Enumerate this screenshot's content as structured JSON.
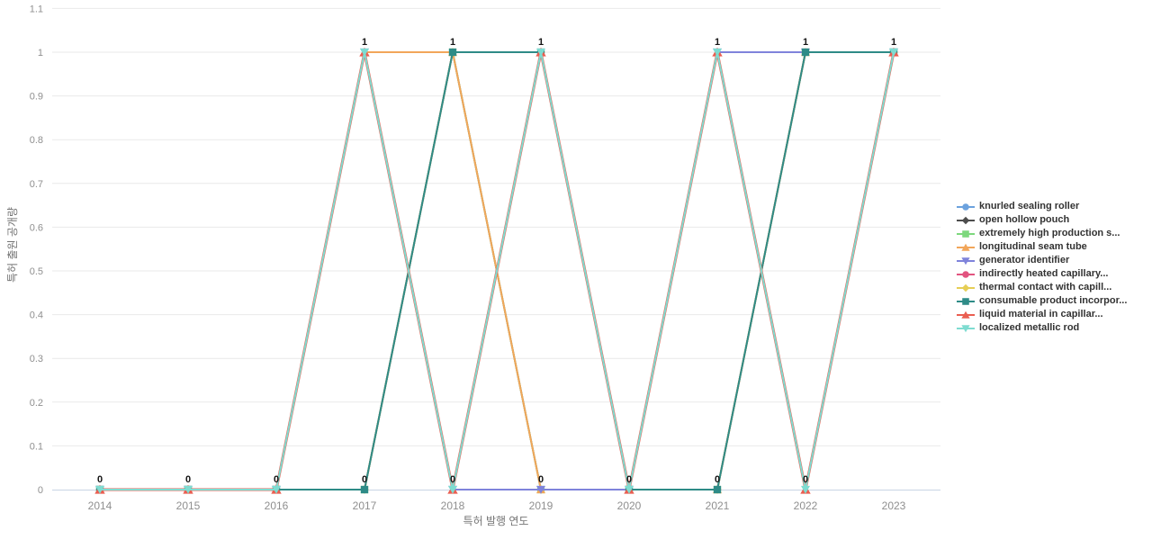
{
  "chart_data": {
    "type": "line",
    "title": "",
    "xlabel": "특허 발행 연도",
    "ylabel": "특허 출원 공개량",
    "x": [
      "2014",
      "2015",
      "2016",
      "2017",
      "2018",
      "2019",
      "2020",
      "2021",
      "2022",
      "2023"
    ],
    "ylim": [
      0,
      1.1
    ],
    "yticks": [
      "0",
      "0.1",
      "0.2",
      "0.3",
      "0.4",
      "0.5",
      "0.6",
      "0.7",
      "0.8",
      "0.9",
      "1",
      "1.1"
    ],
    "grid": true,
    "legend_position": "right",
    "data_label_values_shown": [
      "0",
      "1"
    ],
    "colors": {
      "grid_line": "#e9e9e9",
      "axis_line": "#c9d5e4",
      "tick_text": "#8f8f8f",
      "axis_name_text": "#757575",
      "legend_text": "#333333",
      "data_label_text": "#141414"
    },
    "series": [
      {
        "name": "knurled sealing roller",
        "color": "#6ca2de",
        "symbol": "circle",
        "values": [
          0,
          0,
          0,
          0,
          1,
          1,
          0,
          0,
          1,
          1
        ]
      },
      {
        "name": "open hollow pouch",
        "color": "#4d4d4d",
        "symbol": "diamond",
        "values": [
          0,
          0,
          0,
          0,
          1,
          0,
          0,
          0,
          1,
          1
        ]
      },
      {
        "name": "extremely high production s...",
        "color": "#7dd87d",
        "symbol": "square",
        "values": [
          0,
          0,
          0,
          0,
          1,
          0,
          0,
          0,
          1,
          1
        ]
      },
      {
        "name": "longitudinal seam tube",
        "color": "#f2a65a",
        "symbol": "triangle-up",
        "values": [
          0,
          0,
          0,
          1,
          1,
          0,
          0,
          0,
          1,
          1
        ]
      },
      {
        "name": "generator identifier",
        "color": "#7f83db",
        "symbol": "triangle-down",
        "values": [
          0,
          0,
          0,
          1,
          0,
          0,
          0,
          1,
          1,
          1
        ]
      },
      {
        "name": "indirectly heated capillary...",
        "color": "#e25480",
        "symbol": "circle",
        "values": [
          0,
          0,
          0,
          0,
          1,
          1,
          0,
          0,
          1,
          1
        ]
      },
      {
        "name": "thermal contact with capill...",
        "color": "#e6ce56",
        "symbol": "diamond",
        "values": [
          0,
          0,
          0,
          0,
          1,
          1,
          0,
          0,
          1,
          1
        ]
      },
      {
        "name": "consumable product incorpor...",
        "color": "#2e8b87",
        "symbol": "square",
        "values": [
          0,
          0,
          0,
          0,
          1,
          1,
          0,
          0,
          1,
          1
        ]
      },
      {
        "name": "liquid material in capillar...",
        "color": "#ea5e51",
        "symbol": "triangle-up",
        "values": [
          0,
          0,
          0,
          1,
          0,
          1,
          0,
          1,
          0,
          1
        ]
      },
      {
        "name": "localized metallic rod",
        "color": "#7edcd1",
        "symbol": "triangle-down",
        "values": [
          0,
          0,
          0,
          1,
          0,
          1,
          0,
          1,
          0,
          1
        ]
      }
    ]
  }
}
